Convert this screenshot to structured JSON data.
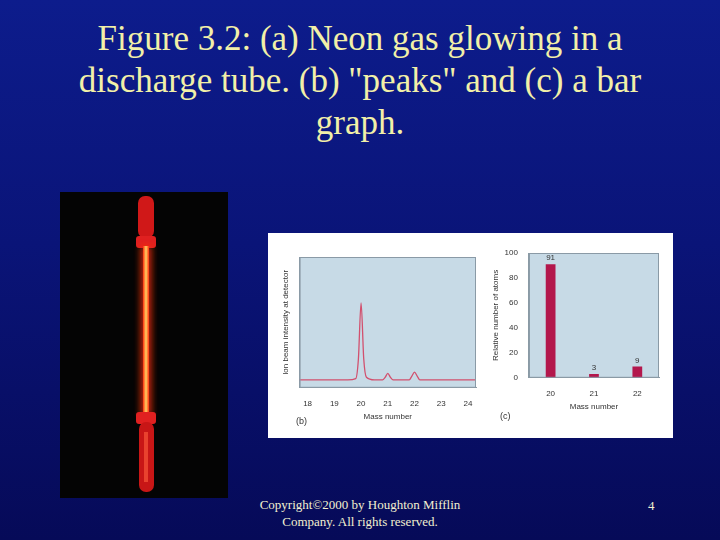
{
  "slide": {
    "title": "Figure 3.2:  (a) Neon gas glowing in a discharge tube. (b) \"peaks\" and (c) a bar graph.",
    "footer": "Copyright©2000 by Houghton Mifflin Company. All rights reserved.",
    "page_number": 4
  },
  "chart_data": [
    {
      "type": "line",
      "x_label": "Mass number",
      "y_label": "Ion beam intensity at detector",
      "x": [
        17.7,
        18,
        19,
        19.5,
        19.8,
        19.9,
        20,
        20.1,
        20.2,
        20.5,
        20.8,
        20.9,
        21,
        21.1,
        21.2,
        21.5,
        21.8,
        21.9,
        22,
        22.1,
        22.2,
        22.5,
        23,
        24,
        24.3
      ],
      "values": [
        6,
        6,
        6,
        6,
        7,
        22,
        65,
        22,
        8,
        6,
        6,
        8,
        11,
        8,
        6,
        6,
        6,
        9,
        12,
        9,
        6,
        6,
        6,
        6,
        6
      ],
      "color": "#d2506e",
      "xlim": [
        17.7,
        24.3
      ],
      "xticks": [
        18,
        19,
        20,
        21,
        22,
        23,
        24
      ],
      "ylim": [
        0,
        100
      ],
      "grid": false,
      "tick_labels": "x",
      "annotations": [
        "(b)"
      ]
    },
    {
      "type": "bar",
      "x_label": "Mass number",
      "y_label": "Relative number of atoms",
      "categories": [
        "20",
        "21",
        "22"
      ],
      "values": [
        91,
        3,
        9
      ],
      "color": "#b3174c",
      "ylim": [
        0,
        100
      ],
      "yticks": [
        0,
        20,
        40,
        60,
        80,
        100
      ],
      "grid": false,
      "data_labels": true,
      "annotations": [
        "(c)"
      ]
    }
  ]
}
